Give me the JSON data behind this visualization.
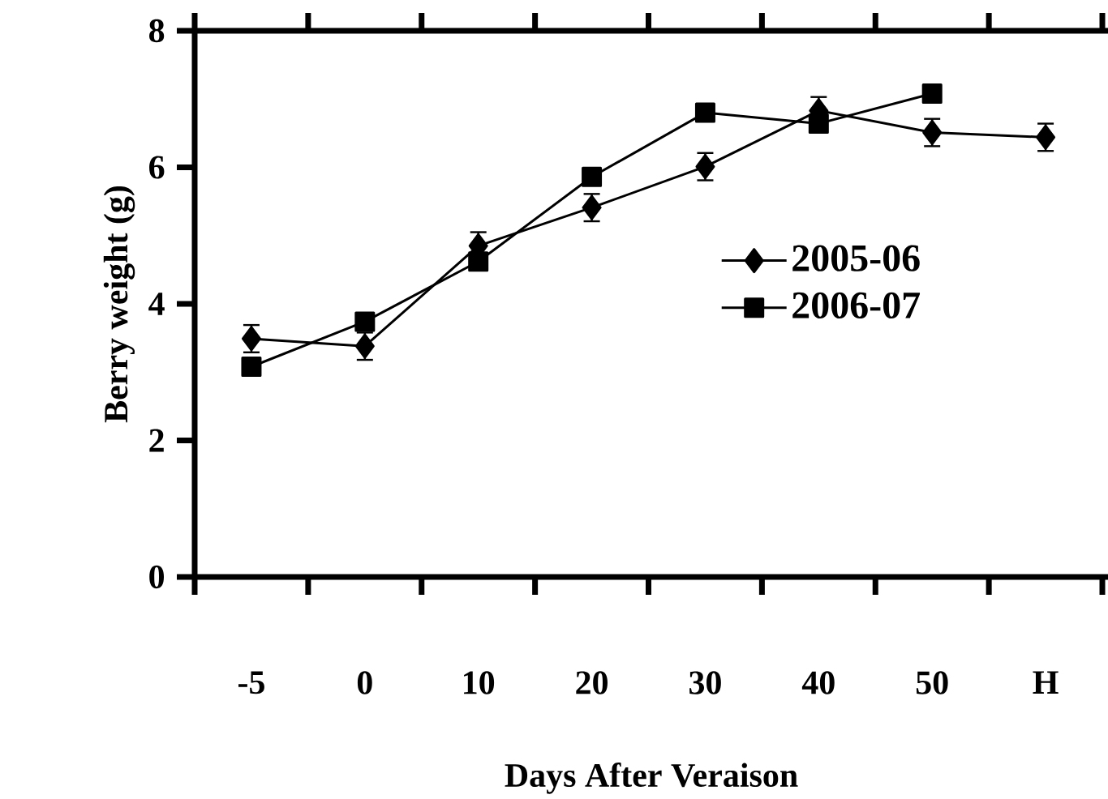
{
  "chart_data": {
    "type": "line",
    "xlabel": "Days After Veraison",
    "ylabel": "Berry weight (g)",
    "categories": [
      "-5",
      "0",
      "10",
      "20",
      "30",
      "40",
      "50",
      "H"
    ],
    "ylim": [
      0,
      8
    ],
    "yticks": [
      0,
      2,
      4,
      6,
      8
    ],
    "legend": "right",
    "grid": false,
    "line_style": "solid",
    "series": [
      {
        "name": "2005-06",
        "color": "#000000",
        "marker": "diamond",
        "values": [
          3.49,
          3.38,
          4.85,
          5.41,
          6.01,
          6.83,
          6.51,
          6.44
        ],
        "errors": [
          0.2,
          0.2,
          0.2,
          0.2,
          0.2,
          0.2,
          0.2,
          0.2
        ]
      },
      {
        "name": "2006-07",
        "color": "#000000",
        "marker": "square",
        "values": [
          3.08,
          3.74,
          4.62,
          5.86,
          6.8,
          6.64,
          7.08,
          null
        ]
      }
    ]
  }
}
